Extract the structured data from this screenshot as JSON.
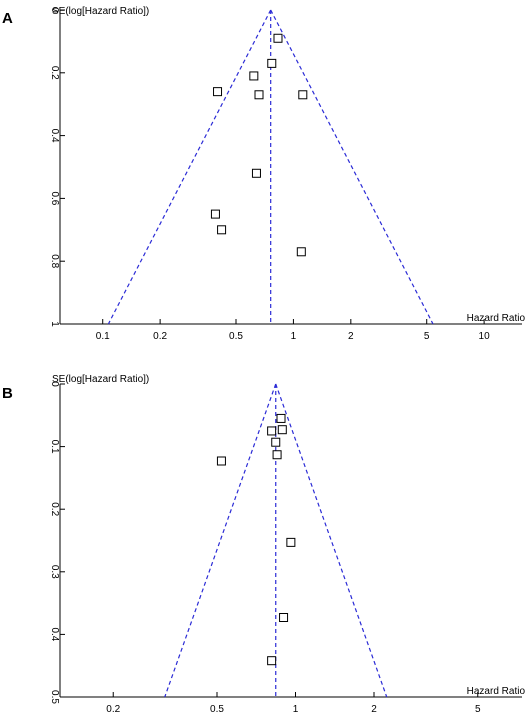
{
  "chart_data": [
    {
      "type": "scatter",
      "panel_label": "A",
      "ylabel": "SE(log[Hazard Ratio])",
      "xlabel": "Hazard Ratio",
      "x_scale": "log",
      "y_reversed": true,
      "xlim": [
        0.0597,
        15.8
      ],
      "ylim": [
        0,
        1
      ],
      "xticks": [
        0.1,
        0.2,
        0.5,
        1,
        2,
        5,
        10
      ],
      "xtick_labels": [
        "0.1",
        "0.2",
        "0.5",
        "1",
        "2",
        "5",
        "10"
      ],
      "yticks": [
        0,
        0.2,
        0.4,
        0.6,
        0.8,
        1
      ],
      "ytick_labels": [
        "0",
        "0.2",
        "0.4",
        "0.6",
        "0.8",
        "1"
      ],
      "pooled_estimate": 0.76,
      "funnel_limits_se": 1,
      "points": [
        {
          "x": 0.83,
          "y": 0.09
        },
        {
          "x": 0.77,
          "y": 0.17
        },
        {
          "x": 0.62,
          "y": 0.21
        },
        {
          "x": 0.4,
          "y": 0.26
        },
        {
          "x": 0.66,
          "y": 0.27
        },
        {
          "x": 1.12,
          "y": 0.27
        },
        {
          "x": 0.64,
          "y": 0.52
        },
        {
          "x": 0.39,
          "y": 0.65
        },
        {
          "x": 0.42,
          "y": 0.7
        },
        {
          "x": 1.1,
          "y": 0.77
        }
      ]
    },
    {
      "type": "scatter",
      "panel_label": "B",
      "ylabel": "SE(log[Hazard Ratio])",
      "xlabel": "Hazard Ratio",
      "x_scale": "log",
      "y_reversed": true,
      "xlim": [
        0.125,
        7.39
      ],
      "ylim": [
        0,
        0.5
      ],
      "xticks": [
        0.2,
        0.5,
        1,
        2,
        5
      ],
      "xtick_labels": [
        "0.2",
        "0.5",
        "1",
        "2",
        "5"
      ],
      "yticks": [
        0,
        0.1,
        0.2,
        0.3,
        0.4,
        0.5
      ],
      "ytick_labels": [
        "0",
        "0.1",
        "0.2",
        "0.3",
        "0.4",
        "0.5"
      ],
      "pooled_estimate": 0.84,
      "funnel_limits_se": 0.5,
      "points": [
        {
          "x": 0.88,
          "y": 0.055
        },
        {
          "x": 0.89,
          "y": 0.073
        },
        {
          "x": 0.81,
          "y": 0.075
        },
        {
          "x": 0.84,
          "y": 0.093
        },
        {
          "x": 0.85,
          "y": 0.113
        },
        {
          "x": 0.52,
          "y": 0.123
        },
        {
          "x": 0.96,
          "y": 0.253
        },
        {
          "x": 0.9,
          "y": 0.373
        },
        {
          "x": 0.81,
          "y": 0.442
        }
      ]
    }
  ]
}
